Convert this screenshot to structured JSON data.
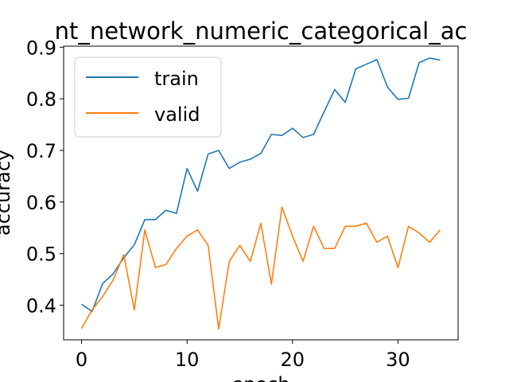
{
  "chart_data": {
    "type": "line",
    "title": "nt_network_numeric_categorical_ac",
    "xlabel": "epoch",
    "ylabel": "accuracy",
    "xlim": [
      -1.7,
      35.7
    ],
    "ylim": [
      0.333,
      0.902
    ],
    "xticks": [
      0,
      10,
      20,
      30
    ],
    "xtick_labels": [
      "0",
      "10",
      "20",
      "30"
    ],
    "yticks": [
      0.4,
      0.5,
      0.6,
      0.7,
      0.8,
      0.9
    ],
    "ytick_labels": [
      "0.4",
      "0.5",
      "0.6",
      "0.7",
      "0.8",
      "0.9"
    ],
    "grid": false,
    "legend_position": "upper-left",
    "x": [
      0,
      1,
      2,
      3,
      4,
      5,
      6,
      7,
      8,
      9,
      10,
      11,
      12,
      13,
      14,
      15,
      16,
      17,
      18,
      19,
      20,
      21,
      22,
      23,
      24,
      25,
      26,
      27,
      28,
      29,
      30,
      31,
      32,
      33,
      34
    ],
    "series": [
      {
        "name": "train",
        "color": "#1f77b4",
        "values": [
          0.402,
          0.388,
          0.442,
          0.461,
          0.492,
          0.517,
          0.566,
          0.566,
          0.584,
          0.578,
          0.665,
          0.621,
          0.693,
          0.7,
          0.665,
          0.677,
          0.683,
          0.694,
          0.731,
          0.729,
          0.743,
          0.725,
          0.731,
          0.775,
          0.818,
          0.793,
          0.858,
          0.867,
          0.876,
          0.823,
          0.799,
          0.801,
          0.87,
          0.879,
          0.875
        ]
      },
      {
        "name": "valid",
        "color": "#ff7f0e",
        "values": [
          0.355,
          0.391,
          0.417,
          0.449,
          0.498,
          0.391,
          0.546,
          0.473,
          0.479,
          0.51,
          0.534,
          0.546,
          0.516,
          0.354,
          0.485,
          0.516,
          0.485,
          0.559,
          0.441,
          0.59,
          0.534,
          0.485,
          0.553,
          0.51,
          0.51,
          0.553,
          0.553,
          0.559,
          0.522,
          0.534,
          0.473,
          0.553,
          0.54,
          0.522,
          0.546
        ]
      }
    ]
  }
}
